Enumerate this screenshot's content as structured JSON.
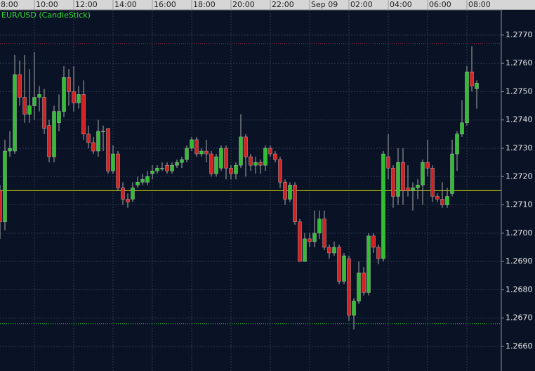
{
  "chart_data": {
    "type": "candlestick",
    "title": "EUR/USD (CandleStick)",
    "x": [
      0.25,
      0.5,
      0.75,
      1,
      1.25,
      1.5,
      1.75,
      2,
      2.25,
      2.5,
      2.75,
      3,
      3.25,
      3.5,
      3.75,
      4,
      4.25,
      4.5,
      4.75,
      5,
      5.25,
      5.5,
      5.75,
      6,
      6.25,
      6.5,
      6.75,
      7,
      7.25,
      7.5,
      7.75,
      8,
      8.25,
      8.5,
      8.75,
      9,
      9.25,
      9.5,
      9.75,
      10,
      10.25,
      10.5,
      10.75,
      11,
      11.25,
      11.5,
      11.75,
      12,
      12.25,
      12.5,
      12.75,
      13,
      13.25,
      13.5,
      13.75,
      14,
      14.25,
      14.5,
      14.75,
      15,
      15.25,
      15.5,
      15.75,
      16,
      16.25,
      16.5,
      16.75,
      17,
      17.25,
      17.5,
      17.75,
      18,
      18.25,
      18.5,
      18.75,
      19,
      19.25,
      19.5,
      19.75,
      20,
      20.25,
      20.5,
      20.75,
      21,
      21.25,
      21.5,
      21.75,
      22,
      22.25,
      22.5,
      22.75,
      23,
      23.25,
      23.5,
      23.75,
      24,
      24.25,
      24.5
    ],
    "open": [
      1.2715,
      1.2704,
      1.2729,
      1.2729,
      1.2756,
      1.2748,
      1.2742,
      1.2745,
      1.2748,
      1.2748,
      1.2738,
      1.2727,
      1.2739,
      1.2743,
      1.2755,
      1.275,
      1.2746,
      1.2749,
      1.2735,
      1.2732,
      1.2729,
      1.2736,
      1.2737,
      1.2722,
      1.2728,
      1.2716,
      1.2712,
      1.2712,
      1.2717,
      1.2718,
      1.2718,
      1.2721,
      1.2722,
      1.2723,
      1.2724,
      1.2722,
      1.2724,
      1.2725,
      1.2726,
      1.273,
      1.2733,
      1.2728,
      1.2729,
      1.2728,
      1.2721,
      1.2723,
      1.273,
      1.2723,
      1.2721,
      1.2724,
      1.2734,
      1.2727,
      1.2724,
      1.2725,
      1.2724,
      1.273,
      1.2728,
      1.2726,
      1.2718,
      1.2712,
      1.2717,
      1.2704,
      1.269,
      1.2698,
      1.2697,
      1.27,
      1.2705,
      1.2695,
      1.2693,
      1.2695,
      1.2683,
      1.2691,
      1.2671,
      1.2676,
      1.2686,
      1.2679,
      1.2699,
      1.2695,
      1.2691,
      1.2727,
      1.2723,
      1.2713,
      1.2725,
      1.2716,
      1.2715,
      1.2716,
      1.2717,
      1.2725,
      1.2723,
      1.2713,
      1.2712,
      1.271,
      1.2714,
      1.2728,
      1.2735,
      1.2739,
      1.2757,
      1.2751
    ],
    "high": [
      1.2717,
      1.2733,
      1.2736,
      1.2763,
      1.2761,
      1.2763,
      1.2758,
      1.2764,
      1.2752,
      1.2751,
      1.274,
      1.2745,
      1.2749,
      1.2759,
      1.2758,
      1.2759,
      1.2752,
      1.2754,
      1.2738,
      1.2734,
      1.274,
      1.2738,
      1.2737,
      1.2731,
      1.2729,
      1.2718,
      1.2714,
      1.2718,
      1.272,
      1.2721,
      1.2722,
      1.2724,
      1.2724,
      1.2725,
      1.2725,
      1.2725,
      1.2726,
      1.2727,
      1.2731,
      1.2734,
      1.2734,
      1.273,
      1.2733,
      1.2729,
      1.2728,
      1.2731,
      1.2731,
      1.2724,
      1.2725,
      1.2742,
      1.2735,
      1.2728,
      1.2727,
      1.2726,
      1.2731,
      1.2731,
      1.2729,
      1.2727,
      1.2719,
      1.2718,
      1.2718,
      1.2705,
      1.27,
      1.27,
      1.2708,
      1.2708,
      1.2708,
      1.2696,
      1.2697,
      1.2696,
      1.2693,
      1.2692,
      1.2677,
      1.269,
      1.2688,
      1.27,
      1.27,
      1.2696,
      1.2729,
      1.2735,
      1.2724,
      1.273,
      1.273,
      1.2724,
      1.2718,
      1.2719,
      1.2726,
      1.2733,
      1.2724,
      1.2714,
      1.2718,
      1.2716,
      1.2733,
      1.2736,
      1.2747,
      1.2759,
      1.2766,
      1.2754
    ],
    "low": [
      1.2698,
      1.2701,
      1.2727,
      1.2728,
      1.2745,
      1.2739,
      1.2739,
      1.274,
      1.2743,
      1.2735,
      1.2725,
      1.2725,
      1.2736,
      1.2741,
      1.2745,
      1.2743,
      1.2744,
      1.2733,
      1.273,
      1.2728,
      1.2727,
      1.2729,
      1.2721,
      1.2721,
      1.2715,
      1.271,
      1.2709,
      1.2711,
      1.2716,
      1.2717,
      1.2717,
      1.2719,
      1.2721,
      1.2722,
      1.2721,
      1.2721,
      1.2723,
      1.2723,
      1.2725,
      1.2729,
      1.2727,
      1.2727,
      1.2725,
      1.272,
      1.272,
      1.2722,
      1.2719,
      1.2719,
      1.2719,
      1.2723,
      1.272,
      1.2722,
      1.2721,
      1.2721,
      1.2722,
      1.2727,
      1.2725,
      1.2716,
      1.271,
      1.2711,
      1.2703,
      1.269,
      1.269,
      1.2695,
      1.2695,
      1.2698,
      1.2694,
      1.2691,
      1.2692,
      1.2682,
      1.2682,
      1.2669,
      1.2666,
      1.2675,
      1.2678,
      1.2678,
      1.2693,
      1.2689,
      1.269,
      1.2719,
      1.2709,
      1.271,
      1.271,
      1.2713,
      1.2708,
      1.2712,
      1.271,
      1.272,
      1.2711,
      1.2711,
      1.2709,
      1.2709,
      1.2713,
      1.2722,
      1.2734,
      1.2738,
      1.275,
      1.2744
    ],
    "close": [
      1.2704,
      1.2729,
      1.273,
      1.2756,
      1.2748,
      1.2742,
      1.2745,
      1.2748,
      1.2749,
      1.2737,
      1.2727,
      1.2743,
      1.2743,
      1.2755,
      1.275,
      1.2746,
      1.2749,
      1.2735,
      1.2732,
      1.2729,
      1.2736,
      1.2736,
      1.2722,
      1.2728,
      1.2716,
      1.2712,
      1.2711,
      1.2716,
      1.2718,
      1.2719,
      1.272,
      1.2722,
      1.2723,
      1.2723,
      1.2722,
      1.2724,
      1.2725,
      1.2726,
      1.273,
      1.2733,
      1.2728,
      1.2729,
      1.2728,
      1.2721,
      1.2727,
      1.273,
      1.2723,
      1.2721,
      1.2724,
      1.2734,
      1.2727,
      1.2724,
      1.2725,
      1.2724,
      1.273,
      1.2728,
      1.2726,
      1.2718,
      1.2712,
      1.2717,
      1.2704,
      1.269,
      1.2698,
      1.2697,
      1.27,
      1.2705,
      1.2695,
      1.2693,
      1.2695,
      1.2683,
      1.2692,
      1.2671,
      1.2676,
      1.2686,
      1.2679,
      1.2699,
      1.2695,
      1.2691,
      1.2728,
      1.2723,
      1.2713,
      1.2725,
      1.2715,
      1.2715,
      1.2716,
      1.2717,
      1.2725,
      1.2723,
      1.2713,
      1.2712,
      1.271,
      1.2713,
      1.2728,
      1.2735,
      1.2739,
      1.2757,
      1.2752,
      1.2753
    ],
    "up_color": "#2fbf2f",
    "down_color": "#d42222",
    "wick_color": "#a8a8a8",
    "xlim": [
      0.25,
      25.75
    ],
    "xticks": [
      {
        "value": 0,
        "label": "8:00"
      },
      {
        "value": 2,
        "label": "10:00"
      },
      {
        "value": 4,
        "label": "12:00"
      },
      {
        "value": 6,
        "label": "14:00"
      },
      {
        "value": 8,
        "label": "16:00"
      },
      {
        "value": 10,
        "label": "18:00"
      },
      {
        "value": 12,
        "label": "20:00"
      },
      {
        "value": 14,
        "label": "22:00"
      },
      {
        "value": 16,
        "label": "Sep 09"
      },
      {
        "value": 18,
        "label": "02:00"
      },
      {
        "value": 20,
        "label": "04:00"
      },
      {
        "value": 22,
        "label": "06:00"
      },
      {
        "value": 24,
        "label": "08:00"
      }
    ],
    "ylim": [
      1.26513,
      1.27789
    ],
    "yticks": [
      {
        "value": 1.266,
        "label": "1.2660"
      },
      {
        "value": 1.267,
        "label": "1.2670"
      },
      {
        "value": 1.268,
        "label": "1.2680"
      },
      {
        "value": 1.269,
        "label": "1.2690"
      },
      {
        "value": 1.27,
        "label": "1.2700"
      },
      {
        "value": 1.271,
        "label": "1.2710"
      },
      {
        "value": 1.272,
        "label": "1.2720"
      },
      {
        "value": 1.273,
        "label": "1.2730"
      },
      {
        "value": 1.274,
        "label": "1.2740"
      },
      {
        "value": 1.275,
        "label": "1.2750"
      },
      {
        "value": 1.276,
        "label": "1.2760"
      },
      {
        "value": 1.277,
        "label": "1.2770"
      }
    ],
    "grid": true,
    "hlines": [
      {
        "value": 1.2767,
        "color": "#c0304a",
        "style": "dotted"
      },
      {
        "value": 1.2715,
        "color": "#e0e000",
        "style": "solid"
      },
      {
        "value": 1.2668,
        "color": "#22cc22",
        "style": "dotted"
      }
    ]
  }
}
